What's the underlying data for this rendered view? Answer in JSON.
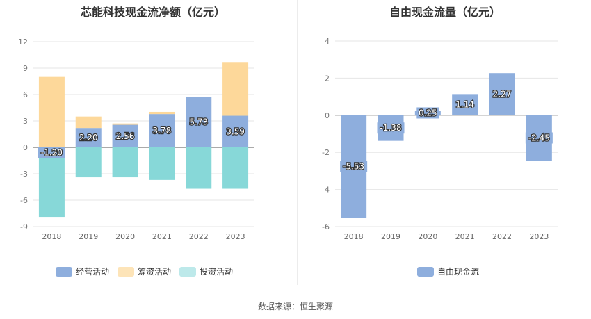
{
  "colors": {
    "operating": "#8eaedd",
    "financing": "#fdd89a",
    "investing": "#87d8d8",
    "fcf": "#8eaedd"
  },
  "source_text": "数据来源：恒生聚源",
  "chart_data": [
    {
      "type": "bar",
      "stacked": true,
      "title": "芯能科技现金流净额（亿元）",
      "categories": [
        "2018",
        "2019",
        "2020",
        "2021",
        "2022",
        "2023"
      ],
      "ylim": [
        -9,
        12
      ],
      "yticks": [
        "12",
        "9",
        "6",
        "3",
        "0",
        "-3",
        "-6",
        "-9"
      ],
      "grid": true,
      "legend_position": "bottom",
      "series": [
        {
          "name": "经营活动",
          "values": [
            -1.2,
            2.2,
            2.56,
            3.78,
            5.73,
            3.59
          ],
          "labels": [
            "-1.20",
            "2.20",
            "2.56",
            "3.78",
            "5.73",
            "3.59"
          ]
        },
        {
          "name": "筹资活动",
          "values": [
            8.0,
            1.3,
            0.15,
            0.25,
            0.0,
            6.1
          ]
        },
        {
          "name": "投资活动",
          "values": [
            -6.7,
            -3.4,
            -3.4,
            -3.7,
            -4.7,
            -4.7
          ]
        }
      ]
    },
    {
      "type": "bar",
      "title": "自由现金流量（亿元）",
      "categories": [
        "2018",
        "2019",
        "2020",
        "2021",
        "2022",
        "2023"
      ],
      "ylim": [
        -6,
        4
      ],
      "yticks": [
        "4",
        "2",
        "0",
        "-2",
        "-4",
        "-6"
      ],
      "grid": true,
      "legend_position": "bottom",
      "series": [
        {
          "name": "自由现金流",
          "values": [
            -5.53,
            -1.38,
            0.25,
            1.14,
            2.27,
            -2.45
          ],
          "labels": [
            "-5.53",
            "-1.38",
            "0.25",
            "1.14",
            "2.27",
            "-2.45"
          ]
        }
      ]
    }
  ]
}
